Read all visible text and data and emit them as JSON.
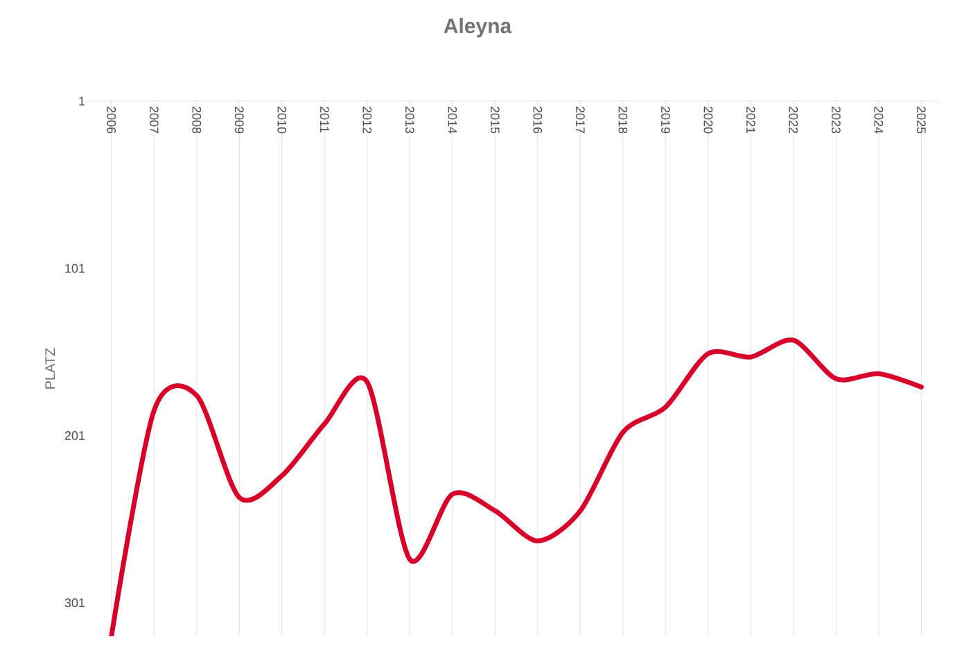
{
  "chart_data": {
    "type": "line",
    "title": "Aleyna",
    "ylabel": "PLATZ",
    "categories": [
      "2006",
      "2007",
      "2008",
      "2009",
      "2010",
      "2011",
      "2012",
      "2013",
      "2014",
      "2015",
      "2016",
      "2017",
      "2018",
      "2019",
      "2020",
      "2021",
      "2022",
      "2023",
      "2024",
      "2025"
    ],
    "series": [
      {
        "color": "#d7002a",
        "values": [
          321,
          186,
          177,
          238,
          225,
          194,
          169,
          275,
          236,
          246,
          264,
          246,
          199,
          184,
          152,
          154,
          144,
          167,
          164,
          172
        ]
      }
    ],
    "ylim": [
      321,
      1
    ],
    "yticks": [
      1,
      101,
      201,
      301
    ],
    "grid": "x",
    "marker": "none",
    "line_style": "solid"
  }
}
